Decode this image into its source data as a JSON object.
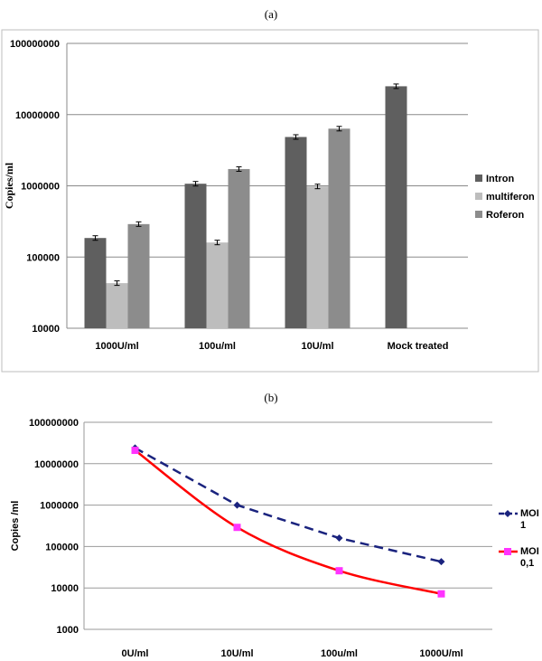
{
  "panel_a_label": "(a)",
  "panel_b_label": "(b)",
  "chart_data": [
    {
      "type": "bar",
      "ylabel": "Copies/ml",
      "yscale": "log",
      "ylim": [
        10000,
        100000000
      ],
      "yticks": [
        "10000",
        "100000",
        "1000000",
        "10000000",
        "100000000"
      ],
      "categories": [
        "1000U/ml",
        "100u/ml",
        "10U/ml",
        "Mock treated"
      ],
      "series": [
        {
          "name": "Intron",
          "color": "#5f5f5f",
          "values": [
            185000,
            1070000,
            4850000,
            25000000
          ]
        },
        {
          "name": "multiferon",
          "color": "#bdbdbd",
          "values": [
            43000,
            160000,
            980000,
            null
          ]
        },
        {
          "name": "Roferon",
          "color": "#8c8c8c",
          "values": [
            290000,
            1720000,
            6350000,
            null
          ]
        }
      ],
      "error_bars": true,
      "grid": true,
      "legend": "right"
    },
    {
      "type": "line",
      "ylabel": "Copies /ml",
      "yscale": "log",
      "ylim": [
        1000,
        100000000
      ],
      "yticks": [
        "1000",
        "10000",
        "100000",
        "1000000",
        "10000000",
        "100000000"
      ],
      "categories": [
        "0U/ml",
        "10U/ml",
        "100u/ml",
        "1000U/ml"
      ],
      "series": [
        {
          "name": "MOI 1",
          "legend_lines": [
            "MOI",
            "1"
          ],
          "color": "#1a237e",
          "style": "dashed",
          "marker": "diamond",
          "values": [
            24000000,
            1000000,
            160000,
            43000
          ]
        },
        {
          "name": "MOI 0,1",
          "legend_lines": [
            "MOI",
            "0,1"
          ],
          "color": "#ff0000",
          "marker_color": "#ff33ff",
          "style": "solid",
          "marker": "square",
          "values": [
            21000000,
            290000,
            26000,
            7200
          ]
        }
      ],
      "grid": true,
      "legend": "right"
    }
  ]
}
